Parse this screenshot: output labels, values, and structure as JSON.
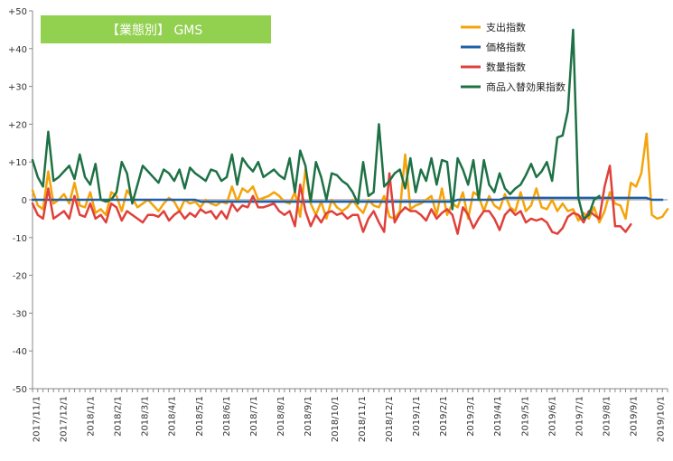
{
  "chart_data": {
    "type": "line",
    "title": "【業態別】 GMS",
    "ylim": [
      -50,
      50
    ],
    "y_ticks": [
      50,
      40,
      30,
      20,
      10,
      0,
      -10,
      -20,
      -30,
      -40,
      -50
    ],
    "y_tick_labels": [
      "+50",
      "+40",
      "+30",
      "+20",
      "+10",
      "0",
      "-10",
      "-20",
      "-30",
      "-40",
      "-50"
    ],
    "x_tick_labels": [
      "2017/11/1",
      "2017/12/1",
      "2018/1/1",
      "2018/2/1",
      "2018/3/1",
      "2018/4/1",
      "2018/5/1",
      "2018/6/1",
      "2018/7/1",
      "2018/8/1",
      "2018/9/1",
      "2018/10/1",
      "2018/11/1",
      "2018/12/1",
      "2019/1/1",
      "2019/2/1",
      "2019/3/1",
      "2019/4/1",
      "2019/5/1",
      "2019/6/1",
      "2019/7/1",
      "2019/8/1",
      "2019/9/1",
      "2019/10/1"
    ],
    "legend_position": "top-right",
    "title_bg_color": "#92d050",
    "grid": false,
    "series": [
      {
        "name": "支出指数",
        "color": "#f5a30a",
        "values": [
          2.5,
          -1.5,
          -2.5,
          7.5,
          -1,
          0,
          1.5,
          -1,
          4.5,
          -1.5,
          -2,
          2,
          -3.5,
          -2.5,
          -4,
          2,
          1,
          -3,
          2.5,
          0.5,
          -2,
          -1,
          0,
          -1.5,
          -3,
          -1,
          0.5,
          -0.5,
          -3,
          0,
          -1,
          -0.5,
          -2,
          0,
          -1,
          -1.5,
          -0.5,
          -1,
          3.5,
          -0.5,
          3,
          2,
          3.5,
          0,
          0.5,
          1,
          2,
          1,
          -0.5,
          -1,
          2,
          -4.5,
          8,
          -1,
          -4,
          -0.5,
          -5,
          0,
          -2,
          -3,
          -2,
          0,
          -2,
          -3.5,
          0,
          -1.5,
          -2,
          1,
          -4.5,
          -5,
          -3,
          12,
          -2.5,
          -1.5,
          -1,
          0,
          1,
          -4,
          3,
          -4,
          -1,
          -2,
          2,
          -5,
          2,
          1,
          -3,
          1,
          -1.5,
          -2.5,
          1.5,
          -2,
          -3,
          2,
          -3,
          -1.5,
          3,
          -2,
          -2.5,
          0,
          -3,
          -1,
          -3,
          -2.5,
          -5.5,
          -3.5,
          -5,
          -2,
          -6,
          -3,
          2,
          -1,
          -1.5,
          -5,
          4.5,
          3.5,
          7,
          17.5,
          -4,
          -5,
          -4.5,
          -2.5
        ]
      },
      {
        "name": "価格指数",
        "color": "#1f5fa8",
        "values": [
          0,
          0,
          0,
          0,
          0,
          0,
          0,
          0,
          0,
          0,
          0,
          0,
          0,
          0,
          0,
          0,
          0,
          0,
          0,
          0,
          0,
          0,
          0,
          0,
          0,
          0,
          0,
          0,
          0,
          0,
          0,
          0,
          -0.5,
          -0.5,
          -0.5,
          -0.5,
          -0.5,
          -0.5,
          -0.5,
          -0.5,
          -0.5,
          -0.5,
          -0.5,
          -0.5,
          -0.5,
          -0.5,
          -0.5,
          -0.5,
          -0.5,
          -0.5,
          -0.5,
          -0.5,
          -0.5,
          -0.5,
          -0.5,
          -0.5,
          -0.5,
          -0.5,
          -0.5,
          -0.5,
          -0.5,
          -0.5,
          -0.5,
          -0.5,
          -0.5,
          -0.5,
          -0.5,
          -0.5,
          -0.5,
          -0.5,
          -0.5,
          -0.5,
          -0.5,
          -0.5,
          -0.5,
          -0.5,
          -0.5,
          -0.5,
          -0.5,
          -0.5,
          -0.5,
          0,
          0,
          0,
          0,
          0,
          0,
          0,
          0,
          0,
          0.5,
          0.5,
          0.5,
          0.5,
          0.5,
          0.5,
          0.5,
          0.5,
          0.5,
          0.5,
          0.5,
          0.5,
          0.5,
          0.5,
          0.5,
          0.5,
          0.5,
          0.5,
          0.5,
          0.5,
          0.5,
          0.5,
          0.5,
          0.5,
          0.5,
          0.5,
          0.5,
          0.5,
          0,
          0,
          0
        ]
      },
      {
        "name": "数量指数",
        "color": "#e0403a",
        "values": [
          -1,
          -4,
          -5,
          3,
          -5,
          -4,
          -3,
          -5,
          1,
          -4,
          -4.5,
          -1,
          -5,
          -4,
          -6,
          -1,
          -2,
          -5.5,
          -3,
          -4,
          -5,
          -6,
          -4,
          -4,
          -4.5,
          -3,
          -5.5,
          -4,
          -3,
          -5,
          -3.5,
          -4.5,
          -2.5,
          -3.5,
          -3,
          -5,
          -3,
          -5,
          -1,
          -3,
          -1.5,
          -2,
          1,
          -2,
          -2,
          -1.5,
          -1,
          -3,
          -4,
          -3,
          -7,
          4,
          -3,
          -7,
          -4,
          -6,
          -3.5,
          -3,
          -4,
          -3.5,
          -5,
          -4,
          -4,
          -8.5,
          -5,
          -3,
          -6,
          -8.5,
          7,
          -6,
          -3.5,
          -2,
          -3,
          -3,
          -4,
          -5.5,
          -2.5,
          -5,
          -3.5,
          -2.5,
          -4,
          -9,
          -2,
          -4,
          -7.5,
          -5,
          -3,
          -3,
          -5,
          -8,
          -4,
          -2.5,
          -4,
          -3,
          -6,
          -5,
          -5.5,
          -5,
          -6,
          -8.5,
          -9,
          -7.5,
          -4.5,
          -3.5,
          -4,
          -6,
          -3,
          -4,
          -5,
          3.5,
          9,
          -7,
          -7,
          -8.5,
          -6.5
        ]
      },
      {
        "name": "商品入替効果指数",
        "color": "#1e7145",
        "values": [
          10.5,
          6,
          3.5,
          18,
          5,
          6,
          7.5,
          9,
          5.5,
          12,
          6,
          4,
          9.5,
          0,
          -0.5,
          0,
          2,
          10,
          7,
          -1,
          4,
          9,
          7.5,
          6,
          4.5,
          8,
          7,
          5,
          8,
          3,
          8.5,
          7,
          6,
          5,
          8,
          7.5,
          5,
          6,
          12,
          4,
          11,
          9,
          7.5,
          10,
          6,
          7,
          8,
          6.5,
          5.5,
          11,
          2,
          13,
          9,
          -0.5,
          10,
          6,
          0,
          7,
          6.5,
          5,
          4,
          2,
          -1,
          10,
          1,
          2,
          20,
          3.5,
          5,
          7,
          8,
          3,
          11,
          2,
          8,
          5,
          11,
          4,
          10.5,
          10,
          -2.5,
          11,
          8,
          4,
          10.5,
          0,
          10.5,
          4,
          2,
          7,
          3,
          1.5,
          3,
          4,
          6.5,
          9.5,
          6,
          7.5,
          10,
          5,
          16.5,
          17,
          23.5,
          45,
          0.5,
          -5,
          -4,
          0,
          1
        ]
      }
    ]
  }
}
